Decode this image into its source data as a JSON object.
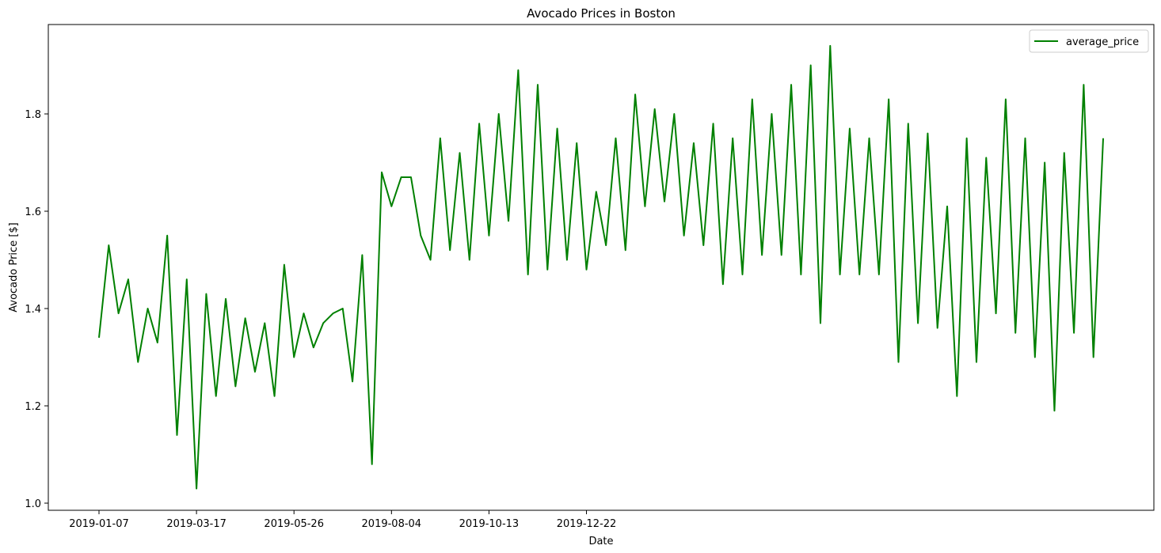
{
  "chart_data": {
    "type": "line",
    "title": "Avocado Prices in Boston",
    "xlabel": "Date",
    "ylabel": "Avocado Price [$]",
    "x_tick_labels": [
      "2019-01-07",
      "2019-03-17",
      "2019-05-26",
      "2019-08-04",
      "2019-10-13",
      "2019-12-22"
    ],
    "y_tick_labels": [
      "1.0",
      "1.2",
      "1.4",
      "1.6",
      "1.8"
    ],
    "y_ticks": [
      1.0,
      1.2,
      1.4,
      1.6,
      1.8
    ],
    "ylim": [
      0.98,
      1.97
    ],
    "grid": false,
    "legend_position": "top-right",
    "series": [
      {
        "name": "average_price",
        "color": "#008000",
        "values": [
          1.34,
          1.53,
          1.39,
          1.46,
          1.29,
          1.4,
          1.33,
          1.55,
          1.14,
          1.46,
          1.03,
          1.43,
          1.22,
          1.42,
          1.24,
          1.38,
          1.27,
          1.37,
          1.22,
          1.49,
          1.3,
          1.39,
          1.32,
          1.37,
          1.39,
          1.4,
          1.25,
          1.51,
          1.08,
          1.68,
          1.61,
          1.67,
          1.67,
          1.55,
          1.5,
          1.75,
          1.52,
          1.72,
          1.5,
          1.78,
          1.55,
          1.8,
          1.58,
          1.89,
          1.47,
          1.86,
          1.48,
          1.77,
          1.5,
          1.74,
          1.48,
          1.64,
          1.53,
          1.75,
          1.52,
          1.84,
          1.61,
          1.81,
          1.62,
          1.8,
          1.55,
          1.74,
          1.53,
          1.78,
          1.45,
          1.75,
          1.47,
          1.83,
          1.51,
          1.8,
          1.51,
          1.86,
          1.47,
          1.9,
          1.37,
          1.94,
          1.47,
          1.77,
          1.47,
          1.75,
          1.47,
          1.83,
          1.29,
          1.78,
          1.37,
          1.76,
          1.36,
          1.61,
          1.22,
          1.75,
          1.29,
          1.71,
          1.39,
          1.83,
          1.35,
          1.75,
          1.3,
          1.7,
          1.19,
          1.72,
          1.35,
          1.86,
          1.3,
          1.75
        ]
      }
    ]
  }
}
